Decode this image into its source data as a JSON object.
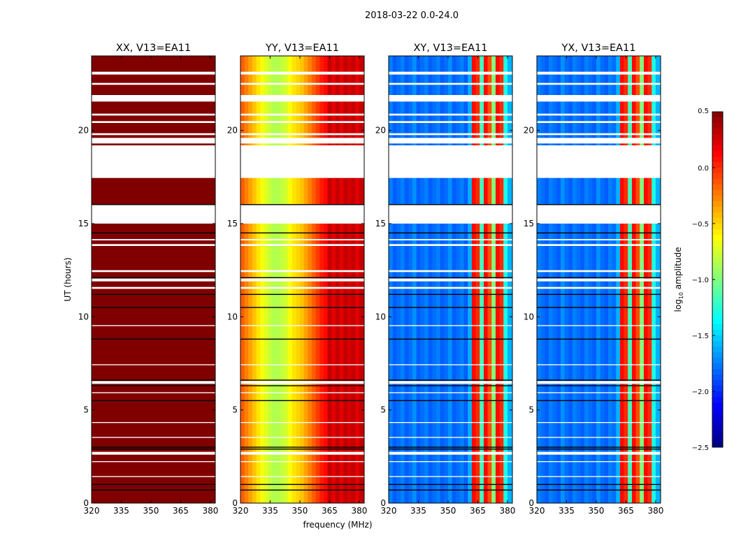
{
  "chart_data": {
    "type": "heatmap",
    "title": "2018-03-22 0.0-24.0",
    "xlabel": "frequency (MHz)",
    "ylabel": "UT (hours)",
    "xlim": [
      320,
      382.5
    ],
    "ylim": [
      0,
      24
    ],
    "xticks": [
      "320",
      "335",
      "350",
      "365",
      "380"
    ],
    "yticks": [
      "0",
      "5",
      "10",
      "15",
      "20"
    ],
    "freq_bins_mhz": [
      320,
      322,
      324,
      326,
      328,
      330,
      332,
      334,
      336,
      338,
      340,
      342,
      344,
      346,
      348,
      350,
      352,
      354,
      356,
      358,
      360,
      362,
      364,
      366,
      368,
      370,
      372,
      374,
      376,
      378,
      380
    ],
    "flagged_hours": [
      [
        23.0,
        23.15
      ],
      [
        22.45,
        22.55
      ],
      [
        21.55,
        21.9
      ],
      [
        20.8,
        20.9
      ],
      [
        20.4,
        20.5
      ],
      [
        19.75,
        19.85
      ],
      [
        19.3,
        19.6
      ],
      [
        17.45,
        19.2
      ],
      [
        15.0,
        16.0
      ],
      [
        14.1,
        14.17
      ],
      [
        13.8,
        13.9
      ],
      [
        12.4,
        12.5
      ],
      [
        11.9,
        12.05
      ],
      [
        11.5,
        11.6
      ],
      [
        9.5,
        9.55
      ],
      [
        7.4,
        7.45
      ],
      [
        6.4,
        6.55
      ],
      [
        5.9,
        5.95
      ],
      [
        4.3,
        4.35
      ],
      [
        3.5,
        3.55
      ],
      [
        2.6,
        2.75
      ],
      [
        2.2,
        2.25
      ],
      [
        1.4,
        1.45
      ]
    ],
    "dark_lines_hours": [
      16.02,
      14.5,
      12.1,
      11.2,
      10.5,
      8.8,
      6.6,
      6.3,
      5.5,
      3.0,
      2.9,
      1.0,
      0.7
    ],
    "panels": [
      {
        "title": "XX, V13=EA11",
        "log_amplitude": [
          0.5,
          0.5,
          0.5,
          0.5,
          0.5,
          0.5,
          0.5,
          0.5,
          0.5,
          0.5,
          0.5,
          0.5,
          0.5,
          0.5,
          0.5,
          0.5,
          0.5,
          0.5,
          0.5,
          0.5,
          0.5,
          0.5,
          0.5,
          0.5,
          0.5,
          0.5,
          0.5,
          0.5,
          0.5,
          0.5,
          0.5
        ]
      },
      {
        "title": "YY, V13=EA11",
        "log_amplitude": [
          -0.15,
          -0.25,
          -0.35,
          -0.45,
          -0.55,
          -0.65,
          -0.72,
          -0.8,
          -0.85,
          -0.85,
          -0.8,
          -0.75,
          -0.65,
          -0.55,
          -0.5,
          -0.45,
          -0.35,
          -0.25,
          -0.15,
          -0.05,
          0.05,
          0.1,
          0.3,
          0.2,
          0.3,
          0.2,
          0.3,
          0.25,
          0.3,
          0.2,
          0.3
        ]
      },
      {
        "title": "XY, V13=EA11",
        "log_amplitude": [
          -1.75,
          -1.85,
          -1.8,
          -1.75,
          -1.85,
          -1.8,
          -1.7,
          -1.85,
          -1.8,
          -1.75,
          -1.85,
          -1.8,
          -1.75,
          -1.85,
          -1.8,
          -1.7,
          -1.85,
          -1.8,
          -1.75,
          -1.85,
          -1.6,
          0.1,
          0.0,
          -1.2,
          0.1,
          -0.1,
          -1.0,
          0.1,
          0.0,
          -1.3,
          -1.6
        ]
      },
      {
        "title": "YX, V13=EA11",
        "log_amplitude": [
          -1.75,
          -1.8,
          -1.85,
          -1.75,
          -1.8,
          -1.85,
          -1.7,
          -1.8,
          -1.85,
          -1.75,
          -1.8,
          -1.85,
          -1.75,
          -1.8,
          -1.85,
          -1.7,
          -1.8,
          -1.85,
          -1.75,
          -1.8,
          -1.6,
          0.1,
          0.0,
          -1.2,
          0.1,
          -0.1,
          -1.0,
          0.1,
          0.0,
          -1.3,
          -1.6
        ]
      }
    ],
    "colorbar": {
      "label": "log10 amplitude",
      "label_main": "log",
      "label_sub": "10",
      "label_rest": " amplitude",
      "range": [
        -2.5,
        0.5
      ],
      "ticks": [
        "0.5",
        "0.0",
        "−0.5",
        "−1.0",
        "−1.5",
        "−2.0",
        "−2.5"
      ],
      "tick_values": [
        0.5,
        0.0,
        -0.5,
        -1.0,
        -1.5,
        -2.0,
        -2.5
      ],
      "colormap": "jet"
    }
  }
}
